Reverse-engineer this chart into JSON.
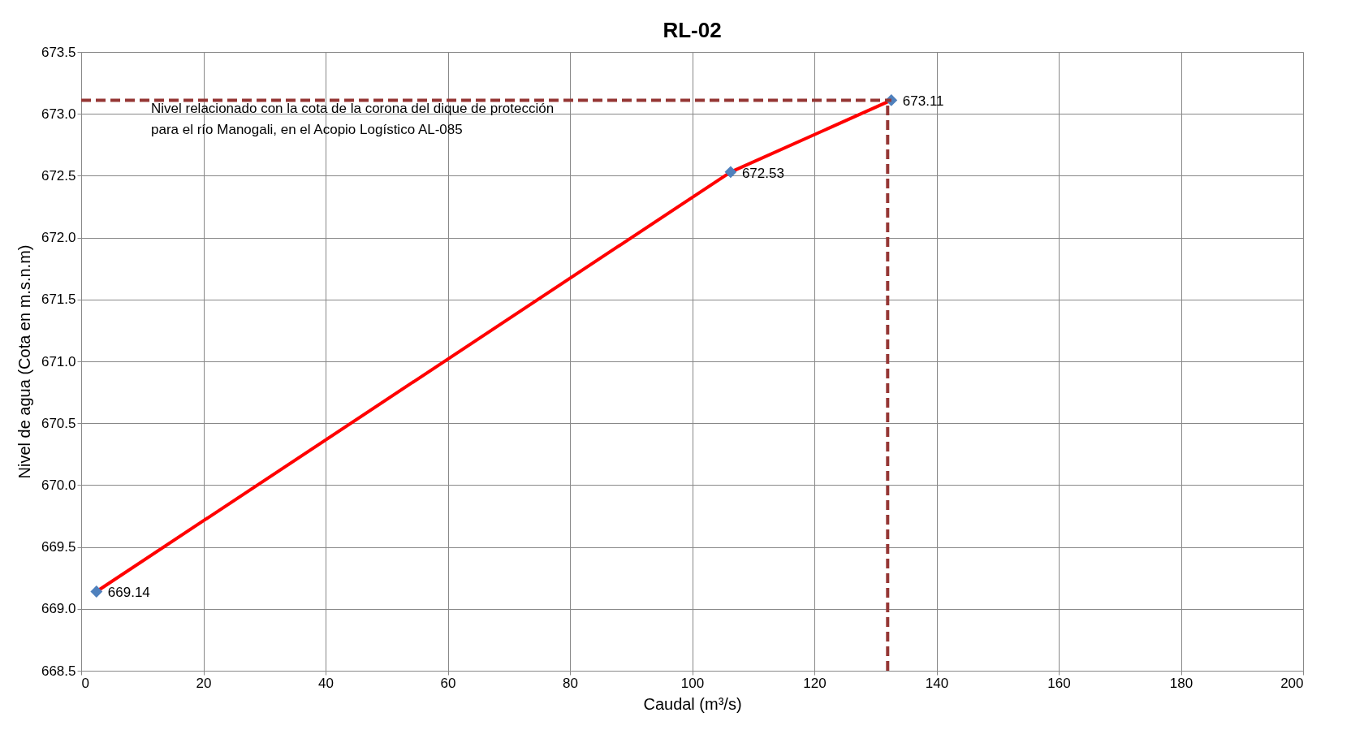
{
  "chart_data": {
    "type": "line",
    "title": "RL-02",
    "xlabel": "Caudal (m³/s)",
    "ylabel": "Nivel de agua (Cota en m.s.n.m)",
    "x": [
      2.5,
      106.3,
      132.6
    ],
    "series": [
      {
        "color": "#ff0000",
        "colors": [
          "#4f81bd",
          "#4f81bd",
          "#4f81bd"
        ],
        "values": [
          669.14,
          672.53,
          673.11
        ]
      }
    ],
    "marker": "diamond",
    "data_labels": true,
    "xlim": [
      0,
      200
    ],
    "xticks": [
      0,
      20,
      40,
      60,
      80,
      100,
      120,
      140,
      160,
      180,
      200
    ],
    "ylim": [
      668.5,
      673.5
    ],
    "yticks": [
      {
        "value": 668.5,
        "label": "668.5"
      },
      {
        "value": 669,
        "label": "669.0"
      },
      {
        "value": 669.5,
        "label": "669.5"
      },
      {
        "value": 670,
        "label": "670.0"
      },
      {
        "value": 670.5,
        "label": "670.5"
      },
      {
        "value": 671,
        "label": "671.0"
      },
      {
        "value": 671.5,
        "label": "671.5"
      },
      {
        "value": 672,
        "label": "672.0"
      },
      {
        "value": 672.5,
        "label": "672.5"
      },
      {
        "value": 673,
        "label": "673.0"
      },
      {
        "value": 673.5,
        "label": "673.5"
      }
    ],
    "ref_lines": [
      {
        "axis": "y",
        "value": 673.11,
        "color": "#953735",
        "line_style": "dashed"
      },
      {
        "axis": "x",
        "value": 132,
        "color": "#953735",
        "line_style": "dashed"
      }
    ],
    "annotations": [
      "Nivel relacionado con la cota de la corona del dique de protección\npara el río Manogali, en el Acopio Logístico AL-085"
    ],
    "grid": true,
    "legend": false
  }
}
